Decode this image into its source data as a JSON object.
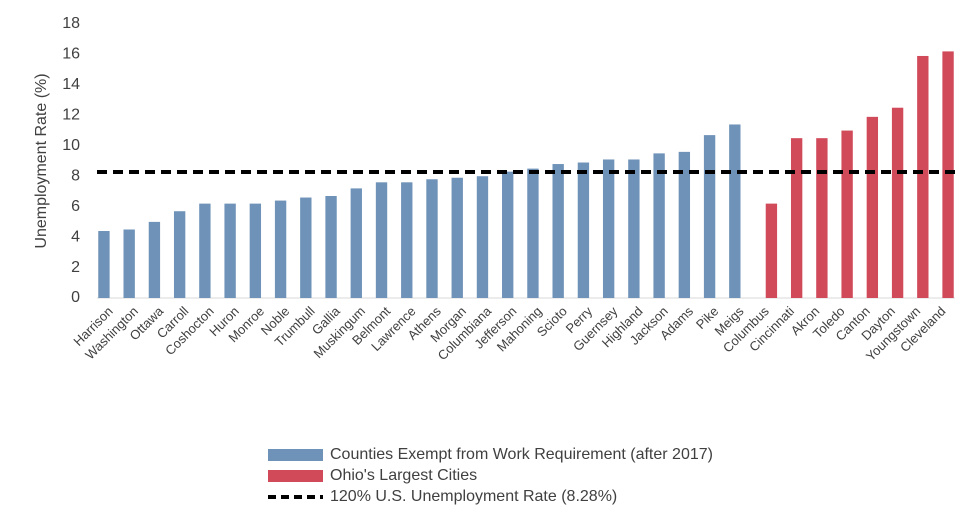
{
  "chart_data": {
    "type": "bar",
    "y_label": "Unemployment Rate (%)",
    "categories": [
      "Harrison",
      "Washington",
      "Ottawa",
      "Carroll",
      "Coshocton",
      "Huron",
      "Monroe",
      "Noble",
      "Trumbull",
      "Gallia",
      "Muskingum",
      "Belmont",
      "Lawrence",
      "Athens",
      "Morgan",
      "Columbiana",
      "Jefferson",
      "Mahoning",
      "Scioto",
      "Perry",
      "Guernsey",
      "Highland",
      "Jackson",
      "Adams",
      "Pike",
      "Meigs",
      "Columbus",
      "Cincinnati",
      "Akron",
      "Toledo",
      "Canton",
      "Dayton",
      "Youngstown",
      "Cleveland"
    ],
    "series": [
      {
        "name": "Counties Exempt from Work Requirement (after 2017)",
        "color": "#6e92b8",
        "values": [
          4.4,
          4.5,
          5.0,
          5.7,
          6.2,
          6.2,
          6.2,
          6.4,
          6.6,
          6.7,
          7.2,
          7.6,
          7.6,
          7.8,
          7.9,
          8.0,
          8.3,
          8.5,
          8.8,
          8.9,
          9.1,
          9.1,
          9.5,
          9.6,
          10.7,
          11.4,
          null,
          null,
          null,
          null,
          null,
          null,
          null,
          null
        ]
      },
      {
        "name": "Ohio's Largest Cities",
        "color": "#d04a5a",
        "values": [
          null,
          null,
          null,
          null,
          null,
          null,
          null,
          null,
          null,
          null,
          null,
          null,
          null,
          null,
          null,
          null,
          null,
          null,
          null,
          null,
          null,
          null,
          null,
          null,
          null,
          null,
          6.2,
          10.5,
          10.5,
          11.0,
          11.9,
          12.5,
          15.9,
          16.2
        ]
      }
    ],
    "reference_line": {
      "name": "120% U.S. Unemployment Rate (8.28%)",
      "value": 8.28,
      "color": "#000000"
    },
    "ylim": [
      0,
      18
    ],
    "yticks": [
      0,
      2,
      4,
      6,
      8,
      10,
      12,
      14,
      16,
      18
    ],
    "grid": false
  }
}
